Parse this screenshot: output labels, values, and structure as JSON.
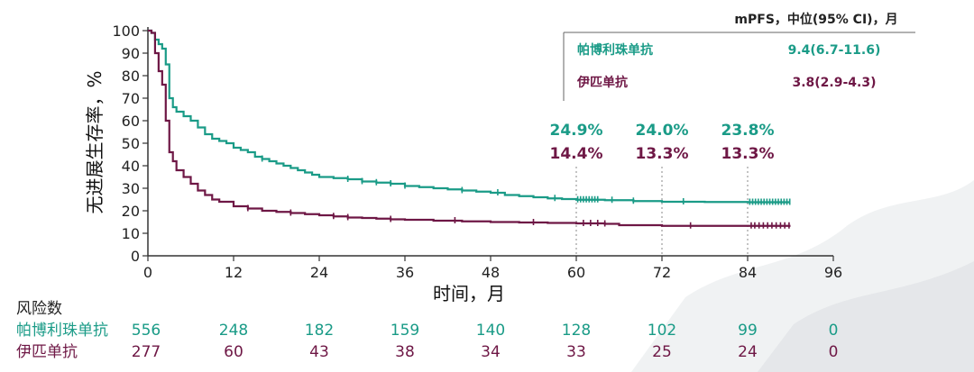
{
  "colors": {
    "pembro": "#1a9b87",
    "ipi": "#6e1745",
    "axis": "#333333",
    "dotted": "#888888",
    "bg_mist": "#e9ecee"
  },
  "legend": {
    "header": "mPFS，中位(95% CI)，月",
    "rows": [
      {
        "name": "帕博利珠单抗",
        "value": "9.4(6.7-11.6)",
        "series": 0
      },
      {
        "name": "伊匹单抗",
        "value": "3.8(2.9-4.3)",
        "series": 1
      }
    ]
  },
  "annotations": [
    {
      "x": 60,
      "top": "24.9%",
      "bottom": "14.4%"
    },
    {
      "x": 72,
      "top": "24.0%",
      "bottom": "13.3%"
    },
    {
      "x": 84,
      "top": "23.8%",
      "bottom": "13.3%"
    }
  ],
  "risk_table": {
    "title": "风险数",
    "rows": [
      {
        "label": "帕博利珠单抗",
        "values": [
          "556",
          "248",
          "182",
          "159",
          "140",
          "128",
          "102",
          "99",
          "0"
        ],
        "series": 0
      },
      {
        "label": "伊匹单抗",
        "values": [
          "277",
          "60",
          "43",
          "38",
          "34",
          "33",
          "25",
          "24",
          "0"
        ],
        "series": 1
      }
    ]
  },
  "chart_data": {
    "type": "line",
    "title": "",
    "xlabel": "时间，月",
    "ylabel": "无进展生存率，%",
    "xlim": [
      0,
      96
    ],
    "ylim": [
      0,
      100
    ],
    "xticks": [
      0,
      12,
      24,
      36,
      48,
      60,
      72,
      84,
      96
    ],
    "yticks": [
      0,
      10,
      20,
      30,
      40,
      50,
      60,
      70,
      80,
      90,
      100
    ],
    "series": [
      {
        "name": "帕博利珠单抗",
        "step": true,
        "points": [
          [
            0,
            100
          ],
          [
            0.5,
            99
          ],
          [
            1,
            96
          ],
          [
            1.5,
            94
          ],
          [
            2,
            92
          ],
          [
            2.5,
            85
          ],
          [
            3,
            70
          ],
          [
            3.5,
            66
          ],
          [
            4,
            64
          ],
          [
            5,
            62
          ],
          [
            6,
            60
          ],
          [
            7,
            57
          ],
          [
            8,
            54
          ],
          [
            9,
            52
          ],
          [
            10,
            51
          ],
          [
            11,
            50
          ],
          [
            12,
            48
          ],
          [
            13,
            47
          ],
          [
            14,
            46
          ],
          [
            15,
            44
          ],
          [
            16,
            43
          ],
          [
            17,
            42
          ],
          [
            18,
            41
          ],
          [
            19,
            40
          ],
          [
            20,
            39
          ],
          [
            21,
            38
          ],
          [
            22,
            37
          ],
          [
            23,
            36
          ],
          [
            24,
            35
          ],
          [
            26,
            34.5
          ],
          [
            28,
            34
          ],
          [
            30,
            33
          ],
          [
            32,
            32.5
          ],
          [
            34,
            32
          ],
          [
            36,
            31
          ],
          [
            38,
            30.5
          ],
          [
            40,
            30
          ],
          [
            42,
            29.5
          ],
          [
            44,
            29
          ],
          [
            46,
            28.5
          ],
          [
            48,
            28
          ],
          [
            50,
            27
          ],
          [
            52,
            26.5
          ],
          [
            54,
            26
          ],
          [
            56,
            25.5
          ],
          [
            58,
            25.2
          ],
          [
            60,
            24.9
          ],
          [
            64,
            24.7
          ],
          [
            68,
            24.3
          ],
          [
            72,
            24.0
          ],
          [
            78,
            23.9
          ],
          [
            84,
            23.8
          ],
          [
            90,
            23.8
          ]
        ],
        "censor_x": [
          16,
          28,
          30,
          32,
          34,
          36,
          44,
          49,
          57,
          60.2,
          60.6,
          61,
          61.4,
          61.8,
          62.2,
          62.6,
          63,
          65,
          68,
          75,
          84.3,
          84.7,
          85.1,
          85.5,
          85.9,
          86.3,
          86.7,
          87.1,
          87.5,
          87.9,
          88.3,
          88.7,
          89.1,
          89.5,
          89.9
        ]
      },
      {
        "name": "伊匹单抗",
        "step": true,
        "points": [
          [
            0,
            100
          ],
          [
            0.5,
            99
          ],
          [
            1,
            90
          ],
          [
            1.5,
            82
          ],
          [
            2,
            76
          ],
          [
            2.5,
            60
          ],
          [
            3,
            46
          ],
          [
            3.5,
            42
          ],
          [
            4,
            38
          ],
          [
            5,
            35
          ],
          [
            6,
            32
          ],
          [
            7,
            29
          ],
          [
            8,
            27
          ],
          [
            9,
            25
          ],
          [
            10,
            24
          ],
          [
            12,
            22
          ],
          [
            14,
            21
          ],
          [
            16,
            20
          ],
          [
            18,
            19.5
          ],
          [
            20,
            19
          ],
          [
            22,
            18.5
          ],
          [
            24,
            18
          ],
          [
            26,
            17.5
          ],
          [
            28,
            17
          ],
          [
            30,
            16.8
          ],
          [
            32,
            16.5
          ],
          [
            34,
            16.2
          ],
          [
            36,
            16
          ],
          [
            40,
            15.6
          ],
          [
            44,
            15.3
          ],
          [
            48,
            15
          ],
          [
            52,
            14.8
          ],
          [
            56,
            14.6
          ],
          [
            60,
            14.4
          ],
          [
            64,
            14.2
          ],
          [
            66,
            13.6
          ],
          [
            72,
            13.3
          ],
          [
            78,
            13.3
          ],
          [
            84,
            13.3
          ],
          [
            90,
            13.3
          ]
        ],
        "censor_x": [
          14,
          20,
          26,
          28,
          34,
          43,
          54,
          61,
          62,
          63,
          64,
          76,
          84.5,
          85,
          85.6,
          86.2,
          86.8,
          87.4,
          88,
          88.6,
          89.2,
          89.8
        ]
      }
    ],
    "grid": false,
    "legend_position": "top-right"
  }
}
